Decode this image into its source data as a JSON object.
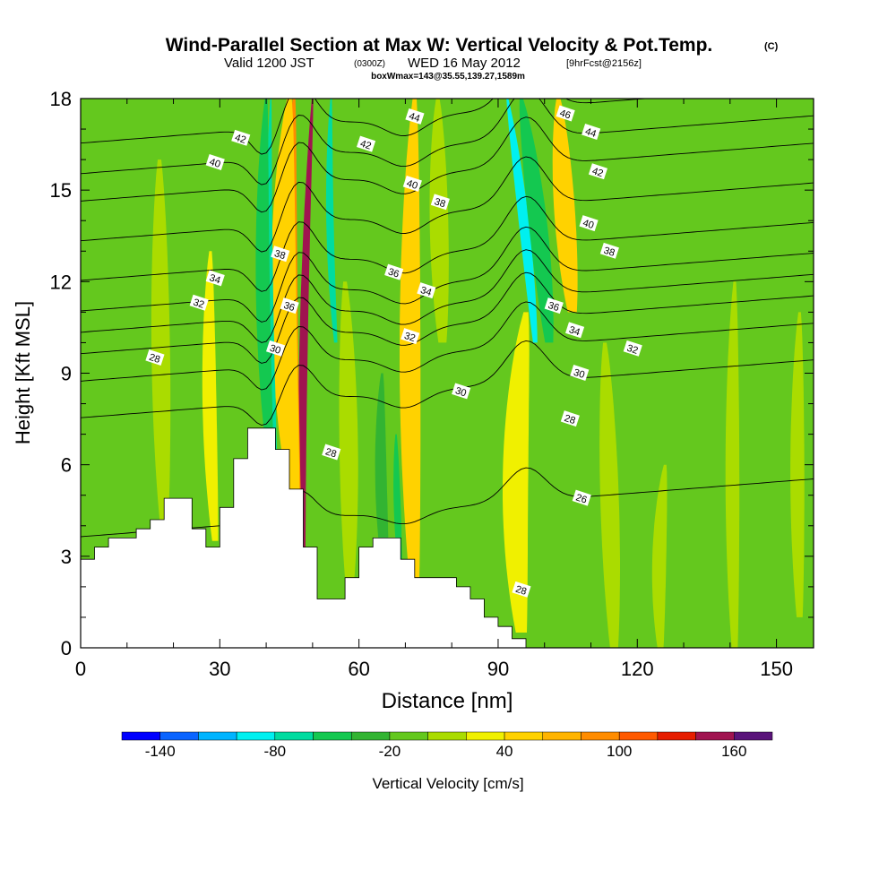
{
  "header": {
    "title": "Wind-Parallel Section at Max W: Vertical Velocity & Pot.Temp.",
    "copyright": "(C)",
    "valid_main": "Valid 1200 JST",
    "valid_utc": "(0300Z)",
    "valid_date": "WED 16 May 2012",
    "forecast": "[9hrFcst@2156z]",
    "subtitle": "boxWmax=143@35.55,139.27,1589m"
  },
  "chart_data": {
    "type": "heatmap",
    "xlabel": "Distance [nm]",
    "ylabel": "Height [Kft MSL]",
    "xlim": [
      0,
      158
    ],
    "ylim": [
      0,
      18
    ],
    "x_ticks": [
      0,
      30,
      60,
      90,
      120,
      150
    ],
    "x_tick_labels": [
      "0",
      "30",
      "60",
      "90",
      "120",
      "150"
    ],
    "y_ticks": [
      0,
      3,
      6,
      9,
      12,
      15,
      18
    ],
    "y_tick_labels": [
      "0",
      "3",
      "6",
      "9",
      "12",
      "15",
      "18"
    ],
    "colorbar": {
      "label": "Vertical Velocity [cm/s]",
      "levels": [
        -160,
        -140,
        -120,
        -100,
        -80,
        -60,
        -40,
        -20,
        0,
        20,
        40,
        60,
        80,
        100,
        120,
        140,
        160,
        180
      ],
      "tick_labels": [
        "-140",
        "-80",
        "-20",
        "40",
        "100",
        "160"
      ],
      "tick_values": [
        -140,
        -80,
        -20,
        40,
        100,
        160
      ],
      "colors": [
        "#0000ff",
        "#0a64ff",
        "#00b4ff",
        "#00f0f0",
        "#00dca0",
        "#14c850",
        "#32b432",
        "#64c81e",
        "#aadc00",
        "#f0f000",
        "#ffd200",
        "#ffb400",
        "#ff8c00",
        "#ff5a00",
        "#e61e00",
        "#a01450",
        "#5a147a"
      ]
    },
    "background_level": "#64c81e",
    "terrain": [
      [
        0,
        2.9
      ],
      [
        3,
        2.9
      ],
      [
        3,
        3.3
      ],
      [
        6,
        3.3
      ],
      [
        6,
        3.6
      ],
      [
        12,
        3.6
      ],
      [
        12,
        3.9
      ],
      [
        15,
        3.9
      ],
      [
        15,
        4.2
      ],
      [
        18,
        4.2
      ],
      [
        18,
        4.9
      ],
      [
        24,
        4.9
      ],
      [
        24,
        3.9
      ],
      [
        27,
        3.9
      ],
      [
        27,
        3.3
      ],
      [
        30,
        3.3
      ],
      [
        30,
        4.6
      ],
      [
        33,
        4.6
      ],
      [
        33,
        6.2
      ],
      [
        36,
        6.2
      ],
      [
        36,
        7.2
      ],
      [
        42,
        7.2
      ],
      [
        42,
        6.5
      ],
      [
        45,
        6.5
      ],
      [
        45,
        5.2
      ],
      [
        48,
        5.2
      ],
      [
        48,
        3.3
      ],
      [
        51,
        3.3
      ],
      [
        51,
        1.6
      ],
      [
        57,
        1.6
      ],
      [
        57,
        2.3
      ],
      [
        60,
        2.3
      ],
      [
        60,
        3.3
      ],
      [
        63,
        3.3
      ],
      [
        63,
        3.6
      ],
      [
        69,
        3.6
      ],
      [
        69,
        2.9
      ],
      [
        72,
        2.9
      ],
      [
        72,
        2.3
      ],
      [
        81,
        2.3
      ],
      [
        81,
        2.0
      ],
      [
        84,
        2.0
      ],
      [
        84,
        1.6
      ],
      [
        87,
        1.6
      ],
      [
        87,
        1.0
      ],
      [
        90,
        1.0
      ],
      [
        90,
        0.7
      ],
      [
        93,
        0.7
      ],
      [
        93,
        0.3
      ],
      [
        96,
        0.3
      ],
      [
        96,
        0.0
      ]
    ],
    "velocity_features": [
      {
        "x0": 48,
        "x1": 47,
        "x2": 50,
        "y0": 0.8,
        "y1": 18,
        "level": 150,
        "width": 1.8
      },
      {
        "x0": 47,
        "x1": 44,
        "x2": 46,
        "y0": 3,
        "y1": 18,
        "level": 90,
        "width": 3.2
      },
      {
        "x0": 46,
        "x1": 42,
        "x2": 45,
        "y0": 5,
        "y1": 18,
        "level": 50,
        "width": 5.5
      },
      {
        "x0": 42,
        "x1": 40,
        "x2": 41,
        "y0": 6.5,
        "y1": 18,
        "level": -80,
        "width": 1.4
      },
      {
        "x0": 41,
        "x1": 38,
        "x2": 40,
        "y0": 6,
        "y1": 18,
        "level": -60,
        "width": 3.0
      },
      {
        "x0": 55,
        "x1": 53,
        "x2": 54,
        "y0": 10,
        "y1": 18,
        "level": -70,
        "width": 1.6
      },
      {
        "x0": 72,
        "x1": 70,
        "x2": 72,
        "y0": 2,
        "y1": 18,
        "level": 40,
        "width": 4.5
      },
      {
        "x0": 66,
        "x1": 64,
        "x2": 65,
        "y0": 2,
        "y1": 9,
        "level": -40,
        "width": 2.5
      },
      {
        "x0": 69,
        "x1": 68,
        "x2": 68,
        "y0": 2.3,
        "y1": 7,
        "level": -50,
        "width": 1.5
      },
      {
        "x0": 95,
        "x1": 92,
        "x2": 96,
        "y0": 0.5,
        "y1": 11,
        "level": 150,
        "width": 2.0
      },
      {
        "x0": 95,
        "x1": 92,
        "x2": 96,
        "y0": 0.5,
        "y1": 11,
        "level": 80,
        "width": 3.6
      },
      {
        "x0": 95,
        "x1": 92,
        "x2": 96,
        "y0": 0.5,
        "y1": 11,
        "level": 30,
        "width": 5.5
      },
      {
        "x0": 98,
        "x1": 96,
        "x2": 92,
        "y0": 10,
        "y1": 18,
        "level": -90,
        "width": 2.2
      },
      {
        "x0": 101,
        "x1": 99,
        "x2": 95,
        "y0": 10,
        "y1": 18,
        "level": -50,
        "width": 4.0
      },
      {
        "x0": 106,
        "x1": 104,
        "x2": 103,
        "y0": 11,
        "y1": 18,
        "level": 40,
        "width": 4.5
      },
      {
        "x0": 29,
        "x1": 27,
        "x2": 28,
        "y0": 3.5,
        "y1": 13,
        "level": 20,
        "width": 3.0
      },
      {
        "x0": 8,
        "x1": 6,
        "x2": 7,
        "y0": 9,
        "y1": 18,
        "level": -10,
        "width": 3.0
      },
      {
        "x0": 18,
        "x1": 17,
        "x2": 17,
        "y0": 4,
        "y1": 16,
        "level": 10,
        "width": 4.0
      },
      {
        "x0": 133,
        "x1": 132,
        "x2": 134,
        "y0": 0,
        "y1": 18,
        "level": -10,
        "width": 5.0
      },
      {
        "x0": 150,
        "x1": 148,
        "x2": 149,
        "y0": 0,
        "y1": 18,
        "level": -10,
        "width": 4.0
      },
      {
        "x0": 117,
        "x1": 116,
        "x2": 116,
        "y0": 0,
        "y1": 12,
        "level": -10,
        "width": 3.0
      },
      {
        "x0": 84,
        "x1": 83,
        "x2": 84,
        "y0": 3,
        "y1": 18,
        "level": -10,
        "width": 3.0
      },
      {
        "x0": 115,
        "x1": 114,
        "x2": 113,
        "y0": 0,
        "y1": 10,
        "level": 10,
        "width": 4.0
      },
      {
        "x0": 125,
        "x1": 124,
        "x2": 126,
        "y0": 0,
        "y1": 6,
        "level": 10,
        "width": 3.0
      },
      {
        "x0": 141,
        "x1": 140,
        "x2": 141,
        "y0": 0,
        "y1": 12,
        "level": 10,
        "width": 3.0
      },
      {
        "x0": 58,
        "x1": 58,
        "x2": 57,
        "y0": 2,
        "y1": 12,
        "level": 10,
        "width": 4.0
      },
      {
        "x0": 78,
        "x1": 77,
        "x2": 77,
        "y0": 10,
        "y1": 18,
        "level": 10,
        "width": 4.0
      },
      {
        "x0": 155,
        "x1": 154,
        "x2": 155,
        "y0": 1,
        "y1": 11,
        "level": 10,
        "width": 3.0
      }
    ],
    "theta_contours": [
      {
        "level": 26,
        "base_height": 4.6,
        "label_x": 109
      },
      {
        "level": 28,
        "base_height": 8.5,
        "label_x": 17
      },
      {
        "level": 30,
        "base_height": 9.7,
        "label_x": 109
      },
      {
        "level": 32,
        "base_height": 10.6,
        "label_x": 24
      },
      {
        "level": 34,
        "base_height": 11.3,
        "label_x": 30
      },
      {
        "level": 36,
        "base_height": 12.0,
        "label_x": 68
      },
      {
        "level": 38,
        "base_height": 13.0,
        "label_x": 78
      },
      {
        "level": 40,
        "base_height": 14.3,
        "label_x": 29
      },
      {
        "level": 42,
        "base_height": 15.6,
        "label_x": 34
      },
      {
        "level": 44,
        "base_height": 16.5,
        "label_x": 114
      },
      {
        "level": 46,
        "base_height": 17.5,
        "label_x": 107
      }
    ],
    "contour_labels": [
      {
        "text": "42",
        "x": 34.5,
        "y": 16.7
      },
      {
        "text": "40",
        "x": 29,
        "y": 15.9
      },
      {
        "text": "34",
        "x": 29,
        "y": 12.1
      },
      {
        "text": "32",
        "x": 25.5,
        "y": 11.3
      },
      {
        "text": "28",
        "x": 16,
        "y": 9.5
      },
      {
        "text": "38",
        "x": 43,
        "y": 12.9
      },
      {
        "text": "36",
        "x": 45,
        "y": 11.2
      },
      {
        "text": "30",
        "x": 42,
        "y": 9.8
      },
      {
        "text": "44",
        "x": 72,
        "y": 17.4
      },
      {
        "text": "42",
        "x": 61.5,
        "y": 16.5
      },
      {
        "text": "40",
        "x": 71.5,
        "y": 15.2
      },
      {
        "text": "38",
        "x": 77.5,
        "y": 14.6
      },
      {
        "text": "36",
        "x": 67.5,
        "y": 12.3
      },
      {
        "text": "34",
        "x": 74.5,
        "y": 11.7
      },
      {
        "text": "32",
        "x": 71,
        "y": 10.2
      },
      {
        "text": "30",
        "x": 82,
        "y": 8.4
      },
      {
        "text": "28",
        "x": 54,
        "y": 6.4
      },
      {
        "text": "46",
        "x": 104.5,
        "y": 17.5
      },
      {
        "text": "44",
        "x": 110,
        "y": 16.9
      },
      {
        "text": "42",
        "x": 111.5,
        "y": 15.6
      },
      {
        "text": "40",
        "x": 109.5,
        "y": 13.9
      },
      {
        "text": "38",
        "x": 114,
        "y": 13.0
      },
      {
        "text": "36",
        "x": 102,
        "y": 11.2
      },
      {
        "text": "34",
        "x": 106.5,
        "y": 10.4
      },
      {
        "text": "32",
        "x": 119,
        "y": 9.8
      },
      {
        "text": "30",
        "x": 107.5,
        "y": 9.0
      },
      {
        "text": "28",
        "x": 105.5,
        "y": 7.5
      },
      {
        "text": "26",
        "x": 108,
        "y": 4.9
      },
      {
        "text": "28",
        "x": 95,
        "y": 1.9
      }
    ]
  }
}
